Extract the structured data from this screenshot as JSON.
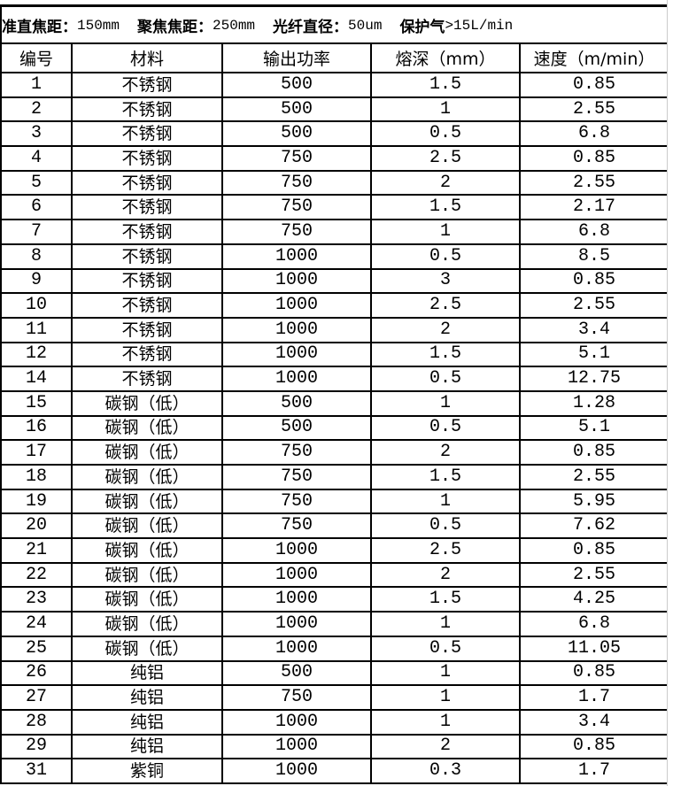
{
  "title": {
    "items": [
      {
        "label": "准直焦距：",
        "value": "150mm"
      },
      {
        "label": "聚焦焦距：",
        "value": "250mm"
      },
      {
        "label": "光纤直径：",
        "value": "50um"
      },
      {
        "label": "保护气",
        "value": ">15L/min"
      }
    ]
  },
  "columns": [
    "编号",
    "材料",
    "输出功率",
    "熔深（mm）",
    "速度（m/min）"
  ],
  "rows": [
    [
      "1",
      "不锈钢",
      "500",
      "1.5",
      "0.85"
    ],
    [
      "2",
      "不锈钢",
      "500",
      "1",
      "2.55"
    ],
    [
      "3",
      "不锈钢",
      "500",
      "0.5",
      "6.8"
    ],
    [
      "4",
      "不锈钢",
      "750",
      "2.5",
      "0.85"
    ],
    [
      "5",
      "不锈钢",
      "750",
      "2",
      "2.55"
    ],
    [
      "6",
      "不锈钢",
      "750",
      "1.5",
      "2.17"
    ],
    [
      "7",
      "不锈钢",
      "750",
      "1",
      "6.8"
    ],
    [
      "8",
      "不锈钢",
      "1000",
      "0.5",
      "8.5"
    ],
    [
      "9",
      "不锈钢",
      "1000",
      "3",
      "0.85"
    ],
    [
      "10",
      "不锈钢",
      "1000",
      "2.5",
      "2.55"
    ],
    [
      "11",
      "不锈钢",
      "1000",
      "2",
      "3.4"
    ],
    [
      "12",
      "不锈钢",
      "1000",
      "1.5",
      "5.1"
    ],
    [
      "14",
      "不锈钢",
      "1000",
      "0.5",
      "12.75"
    ],
    [
      "15",
      "碳钢（低）",
      "500",
      "1",
      "1.28"
    ],
    [
      "16",
      "碳钢（低）",
      "500",
      "0.5",
      "5.1"
    ],
    [
      "17",
      "碳钢（低）",
      "750",
      "2",
      "0.85"
    ],
    [
      "18",
      "碳钢（低）",
      "750",
      "1.5",
      "2.55"
    ],
    [
      "19",
      "碳钢（低）",
      "750",
      "1",
      "5.95"
    ],
    [
      "20",
      "碳钢（低）",
      "750",
      "0.5",
      "7.62"
    ],
    [
      "21",
      "碳钢（低）",
      "1000",
      "2.5",
      "0.85"
    ],
    [
      "22",
      "碳钢（低）",
      "1000",
      "2",
      "2.55"
    ],
    [
      "23",
      "碳钢（低）",
      "1000",
      "1.5",
      "4.25"
    ],
    [
      "24",
      "碳钢（低）",
      "1000",
      "1",
      "6.8"
    ],
    [
      "25",
      "碳钢（低）",
      "1000",
      "0.5",
      "11.05"
    ],
    [
      "26",
      "纯铝",
      "500",
      "1",
      "0.85"
    ],
    [
      "27",
      "纯铝",
      "750",
      "1",
      "1.7"
    ],
    [
      "28",
      "纯铝",
      "1000",
      "1",
      "3.4"
    ],
    [
      "29",
      "纯铝",
      "1000",
      "2",
      "0.85"
    ],
    [
      "31",
      "紫铜",
      "1000",
      "0.3",
      "1.7"
    ]
  ]
}
